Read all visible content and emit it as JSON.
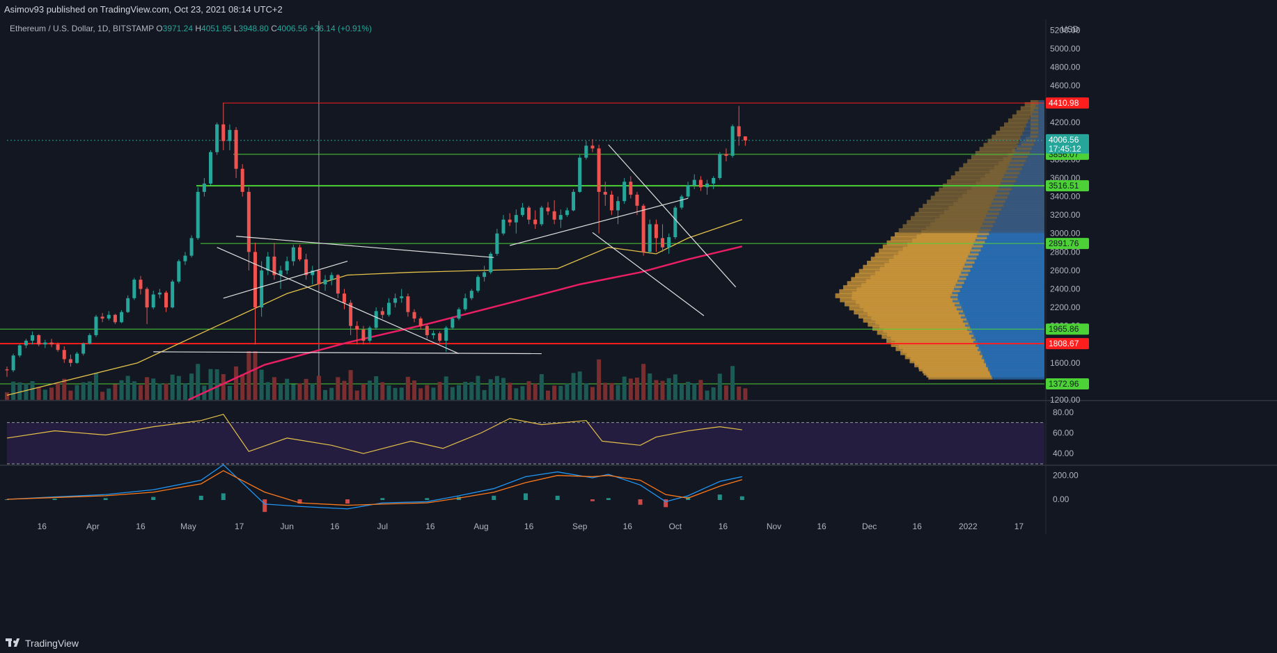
{
  "header": {
    "published": "Asimov93 published on TradingView.com, Oct 23, 2021 08:14 UTC+2"
  },
  "legend": {
    "symbol": "Ethereum / U.S. Dollar, 1D, BITSTAMP",
    "o_label": "O",
    "o_value": "3971.24",
    "h_label": "H",
    "h_value": "4051.95",
    "l_label": "L",
    "l_value": "3948.80",
    "c_label": "C",
    "c_value": "4006.56",
    "change": "+36.14 (+0.91%)"
  },
  "footer": {
    "brand": "TradingView"
  },
  "colors": {
    "background": "#131722",
    "up": "#26a69a",
    "down": "#ef5350",
    "resistance": "#ff1e1e",
    "support": "#4cd137",
    "ma_short": "#e6c34a",
    "ma_long": "#e91e63",
    "rsi": "#e6c34a",
    "macd": "#2196f3",
    "signal": "#ff7a1a"
  },
  "chart_data": [
    {
      "type": "candlestick",
      "title": "Ethereum / U.S. Dollar, 1D, BITSTAMP",
      "currency": "USD",
      "y_ticks": [
        "5200.00",
        "5000.00",
        "4800.00",
        "4600.00",
        "4400.00",
        "4200.00",
        "4000.00",
        "3800.00",
        "3600.00",
        "3400.00",
        "3200.00",
        "3000.00",
        "2800.00",
        "2600.00",
        "2400.00",
        "2200.00",
        "2000.00",
        "1800.00",
        "1600.00",
        "1400.00",
        "1200.00"
      ],
      "ylim": [
        1200,
        5300
      ],
      "x_ticks": [
        "16",
        "Apr",
        "16",
        "May",
        "17",
        "Jun",
        "16",
        "Jul",
        "16",
        "Aug",
        "16",
        "Sep",
        "16",
        "Oct",
        "16",
        "Nov",
        "16",
        "Dec",
        "16",
        "2022",
        "17"
      ],
      "x_range": [
        "2021-03-05",
        "2022-01-25"
      ],
      "last_price": "4006.56",
      "countdown": "17:45:12",
      "horizontal_levels": [
        {
          "value": "4410.98",
          "color": "red"
        },
        {
          "value": "3856.07",
          "color": "green"
        },
        {
          "value": "3516.51",
          "color": "green"
        },
        {
          "value": "2891.76",
          "color": "green"
        },
        {
          "value": "1965.86",
          "color": "green"
        },
        {
          "value": "1808.67",
          "color": "red"
        },
        {
          "value": "1372.96",
          "color": "green"
        }
      ],
      "moving_averages": [
        {
          "x": [
            "2021-03-05",
            "2021-04-15",
            "2021-05-10",
            "2021-06-01",
            "2021-06-20",
            "2021-07-10",
            "2021-08-01",
            "2021-08-25",
            "2021-09-10",
            "2021-09-25",
            "2021-10-05",
            "2021-10-22"
          ],
          "values": [
            1250,
            1600,
            2000,
            2350,
            2550,
            2580,
            2600,
            2620,
            2850,
            2780,
            2950,
            3150
          ],
          "color": "yellow"
        },
        {
          "x": [
            "2021-05-01",
            "2021-05-25",
            "2021-06-20",
            "2021-07-15",
            "2021-08-10",
            "2021-09-01",
            "2021-09-20",
            "2021-10-05",
            "2021-10-22"
          ],
          "values": [
            1200,
            1580,
            1820,
            2020,
            2250,
            2450,
            2580,
            2720,
            2860
          ],
          "color": "pink"
        }
      ],
      "candles": [
        [
          "2021-03-05",
          1530,
          1560,
          1450,
          1520
        ],
        [
          "2021-03-07",
          1520,
          1700,
          1500,
          1680
        ],
        [
          "2021-03-09",
          1680,
          1800,
          1660,
          1790
        ],
        [
          "2021-03-11",
          1790,
          1860,
          1760,
          1840
        ],
        [
          "2021-03-13",
          1840,
          1940,
          1800,
          1900
        ],
        [
          "2021-03-15",
          1900,
          1910,
          1780,
          1800
        ],
        [
          "2021-03-17",
          1800,
          1850,
          1760,
          1820
        ],
        [
          "2021-03-19",
          1820,
          1860,
          1770,
          1800
        ],
        [
          "2021-03-21",
          1800,
          1820,
          1720,
          1740
        ],
        [
          "2021-03-23",
          1740,
          1780,
          1600,
          1640
        ],
        [
          "2021-03-25",
          1640,
          1690,
          1560,
          1600
        ],
        [
          "2021-03-27",
          1600,
          1720,
          1590,
          1700
        ],
        [
          "2021-03-29",
          1700,
          1820,
          1680,
          1810
        ],
        [
          "2021-03-31",
          1810,
          1920,
          1800,
          1900
        ],
        [
          "2021-04-02",
          1900,
          2120,
          1880,
          2100
        ],
        [
          "2021-04-04",
          2100,
          2140,
          2040,
          2080
        ],
        [
          "2021-04-06",
          2080,
          2160,
          2060,
          2120
        ],
        [
          "2021-04-08",
          2120,
          2130,
          2020,
          2040
        ],
        [
          "2021-04-10",
          2040,
          2170,
          2030,
          2150
        ],
        [
          "2021-04-12",
          2150,
          2330,
          2140,
          2300
        ],
        [
          "2021-04-14",
          2300,
          2520,
          2280,
          2500
        ],
        [
          "2021-04-16",
          2500,
          2540,
          2340,
          2400
        ],
        [
          "2021-04-18",
          2400,
          2420,
          2020,
          2200
        ],
        [
          "2021-04-20",
          2200,
          2380,
          2180,
          2340
        ],
        [
          "2021-04-22",
          2340,
          2400,
          2300,
          2360
        ],
        [
          "2021-04-24",
          2360,
          2380,
          2150,
          2200
        ],
        [
          "2021-04-26",
          2200,
          2500,
          2190,
          2480
        ],
        [
          "2021-04-28",
          2480,
          2720,
          2460,
          2700
        ],
        [
          "2021-04-30",
          2700,
          2800,
          2660,
          2760
        ],
        [
          "2021-05-02",
          2760,
          2980,
          2740,
          2950
        ],
        [
          "2021-05-04",
          2950,
          3500,
          2930,
          3450
        ],
        [
          "2021-05-06",
          3450,
          3600,
          3400,
          3540
        ],
        [
          "2021-05-08",
          3540,
          3900,
          3520,
          3880
        ],
        [
          "2021-05-10",
          3880,
          4200,
          3850,
          4180
        ],
        [
          "2021-05-12",
          4180,
          4410,
          3900,
          4000
        ],
        [
          "2021-05-14",
          4000,
          4180,
          3900,
          4120
        ],
        [
          "2021-05-16",
          4120,
          4150,
          3600,
          3700
        ],
        [
          "2021-05-18",
          3700,
          3750,
          3400,
          3450
        ],
        [
          "2021-05-20",
          3450,
          3500,
          2600,
          2800
        ],
        [
          "2021-05-22",
          2800,
          2900,
          1800,
          2200
        ],
        [
          "2021-05-24",
          2200,
          2700,
          2100,
          2600
        ],
        [
          "2021-05-26",
          2600,
          2800,
          2550,
          2750
        ],
        [
          "2021-05-28",
          2750,
          2900,
          2500,
          2550
        ],
        [
          "2021-05-30",
          2550,
          2650,
          2400,
          2600
        ],
        [
          "2021-06-01",
          2600,
          2750,
          2560,
          2700
        ],
        [
          "2021-06-03",
          2700,
          2880,
          2650,
          2850
        ],
        [
          "2021-06-05",
          2850,
          2880,
          2700,
          2720
        ],
        [
          "2021-06-07",
          2720,
          2780,
          2500,
          2550
        ],
        [
          "2021-06-09",
          2550,
          2650,
          2450,
          2600
        ],
        [
          "2021-06-11",
          2600,
          2620,
          2400,
          2450
        ],
        [
          "2021-06-13",
          2450,
          2550,
          2380,
          2500
        ],
        [
          "2021-06-15",
          2500,
          2580,
          2440,
          2550
        ],
        [
          "2021-06-17",
          2550,
          2560,
          2300,
          2350
        ],
        [
          "2021-06-19",
          2350,
          2400,
          2180,
          2250
        ],
        [
          "2021-06-21",
          2250,
          2280,
          1900,
          2000
        ],
        [
          "2021-06-23",
          2000,
          2050,
          1800,
          1960
        ],
        [
          "2021-06-25",
          1960,
          2000,
          1800,
          1840
        ],
        [
          "2021-06-27",
          1840,
          2000,
          1820,
          1980
        ],
        [
          "2021-06-29",
          1980,
          2200,
          1960,
          2160
        ],
        [
          "2021-07-01",
          2160,
          2200,
          2080,
          2120
        ],
        [
          "2021-07-03",
          2120,
          2300,
          2100,
          2250
        ],
        [
          "2021-07-05",
          2250,
          2350,
          2200,
          2300
        ],
        [
          "2021-07-07",
          2300,
          2400,
          2250,
          2320
        ],
        [
          "2021-07-09",
          2320,
          2350,
          2100,
          2150
        ],
        [
          "2021-07-11",
          2150,
          2180,
          2040,
          2080
        ],
        [
          "2021-07-13",
          2080,
          2100,
          1960,
          2000
        ],
        [
          "2021-07-15",
          2000,
          2020,
          1860,
          1900
        ],
        [
          "2021-07-17",
          1900,
          1950,
          1860,
          1920
        ],
        [
          "2021-07-19",
          1920,
          1940,
          1820,
          1840
        ],
        [
          "2021-07-21",
          1840,
          2000,
          1720,
          1980
        ],
        [
          "2021-07-23",
          1980,
          2100,
          1960,
          2080
        ],
        [
          "2021-07-25",
          2080,
          2200,
          2060,
          2180
        ],
        [
          "2021-07-27",
          2180,
          2350,
          2160,
          2300
        ],
        [
          "2021-07-29",
          2300,
          2400,
          2280,
          2380
        ],
        [
          "2021-07-31",
          2380,
          2550,
          2360,
          2530
        ],
        [
          "2021-08-02",
          2530,
          2650,
          2480,
          2580
        ],
        [
          "2021-08-04",
          2580,
          2800,
          2560,
          2780
        ],
        [
          "2021-08-06",
          2780,
          3050,
          2760,
          3000
        ],
        [
          "2021-08-08",
          3000,
          3200,
          2980,
          3150
        ],
        [
          "2021-08-10",
          3150,
          3220,
          3080,
          3120
        ],
        [
          "2021-08-12",
          3120,
          3260,
          3000,
          3200
        ],
        [
          "2021-08-14",
          3200,
          3330,
          3180,
          3280
        ],
        [
          "2021-08-16",
          3280,
          3300,
          3100,
          3150
        ],
        [
          "2021-08-18",
          3150,
          3250,
          3050,
          3100
        ],
        [
          "2021-08-20",
          3100,
          3300,
          3080,
          3280
        ],
        [
          "2021-08-22",
          3280,
          3340,
          3200,
          3240
        ],
        [
          "2021-08-24",
          3240,
          3360,
          3100,
          3150
        ],
        [
          "2021-08-26",
          3150,
          3260,
          3060,
          3200
        ],
        [
          "2021-08-28",
          3200,
          3280,
          3180,
          3250
        ],
        [
          "2021-08-30",
          3250,
          3480,
          3240,
          3450
        ],
        [
          "2021-09-01",
          3450,
          3850,
          3440,
          3820
        ],
        [
          "2021-09-03",
          3820,
          4000,
          3800,
          3950
        ],
        [
          "2021-09-05",
          3950,
          4020,
          3880,
          3920
        ],
        [
          "2021-09-07",
          3920,
          3960,
          3000,
          3450
        ],
        [
          "2021-09-09",
          3450,
          3560,
          3300,
          3420
        ],
        [
          "2021-09-11",
          3420,
          3460,
          3200,
          3250
        ],
        [
          "2021-09-13",
          3250,
          3400,
          3100,
          3350
        ],
        [
          "2021-09-15",
          3350,
          3600,
          3320,
          3560
        ],
        [
          "2021-09-17",
          3560,
          3620,
          3380,
          3420
        ],
        [
          "2021-09-19",
          3420,
          3450,
          3200,
          3300
        ],
        [
          "2021-09-21",
          3300,
          3320,
          2760,
          2800
        ],
        [
          "2021-09-23",
          2800,
          3150,
          2780,
          3100
        ],
        [
          "2021-09-25",
          3100,
          3150,
          2800,
          2950
        ],
        [
          "2021-09-27",
          2950,
          3100,
          2800,
          2850
        ],
        [
          "2021-09-29",
          2850,
          3000,
          2780,
          2960
        ],
        [
          "2021-10-01",
          2960,
          3300,
          2940,
          3280
        ],
        [
          "2021-10-03",
          3280,
          3420,
          3260,
          3400
        ],
        [
          "2021-10-05",
          3400,
          3560,
          3380,
          3520
        ],
        [
          "2021-10-07",
          3520,
          3640,
          3480,
          3580
        ],
        [
          "2021-10-09",
          3580,
          3620,
          3460,
          3500
        ],
        [
          "2021-10-11",
          3500,
          3580,
          3420,
          3540
        ],
        [
          "2021-10-13",
          3540,
          3620,
          3480,
          3600
        ],
        [
          "2021-10-15",
          3600,
          3880,
          3580,
          3860
        ],
        [
          "2021-10-17",
          3860,
          3920,
          3780,
          3840
        ],
        [
          "2021-10-19",
          3840,
          4180,
          3820,
          4160
        ],
        [
          "2021-10-21",
          4160,
          4380,
          3950,
          4050
        ],
        [
          "2021-10-23",
          4050,
          4051.95,
          3948.8,
          4006.56
        ]
      ]
    },
    {
      "type": "line",
      "title": "RSI",
      "y_ticks": [
        "80.00",
        "60.00",
        "40.00"
      ],
      "ylim": [
        30,
        90
      ],
      "bands": [
        70,
        30
      ],
      "x": [
        "2021-03-05",
        "2021-03-20",
        "2021-04-05",
        "2021-04-20",
        "2021-05-05",
        "2021-05-12",
        "2021-05-20",
        "2021-06-01",
        "2021-06-15",
        "2021-06-25",
        "2021-07-10",
        "2021-07-20",
        "2021-08-01",
        "2021-08-10",
        "2021-08-20",
        "2021-09-03",
        "2021-09-08",
        "2021-09-20",
        "2021-09-25",
        "2021-10-05",
        "2021-10-15",
        "2021-10-22"
      ],
      "values": [
        55,
        62,
        58,
        66,
        72,
        78,
        42,
        55,
        48,
        40,
        52,
        45,
        60,
        74,
        68,
        72,
        52,
        48,
        56,
        62,
        66,
        63
      ]
    },
    {
      "type": "line",
      "title": "MACD",
      "y_ticks": [
        "200.00",
        "0.00"
      ],
      "ylim": [
        -140,
        280
      ],
      "series": [
        {
          "values": [
            0,
            20,
            40,
            80,
            160,
            290,
            -40,
            -60,
            -80,
            -30,
            -20,
            30,
            90,
            190,
            230,
            180,
            210,
            120,
            -20,
            30,
            150,
            190
          ]
        },
        {
          "values": [
            0,
            15,
            30,
            60,
            130,
            240,
            60,
            -30,
            -50,
            -40,
            -30,
            10,
            60,
            140,
            200,
            190,
            200,
            160,
            40,
            10,
            110,
            165
          ]
        }
      ],
      "x": [
        "2021-03-05",
        "2021-03-20",
        "2021-04-05",
        "2021-04-20",
        "2021-05-05",
        "2021-05-12",
        "2021-05-25",
        "2021-06-05",
        "2021-06-20",
        "2021-07-01",
        "2021-07-15",
        "2021-07-25",
        "2021-08-05",
        "2021-08-15",
        "2021-08-25",
        "2021-09-05",
        "2021-09-10",
        "2021-09-20",
        "2021-09-28",
        "2021-10-05",
        "2021-10-15",
        "2021-10-22"
      ]
    }
  ]
}
